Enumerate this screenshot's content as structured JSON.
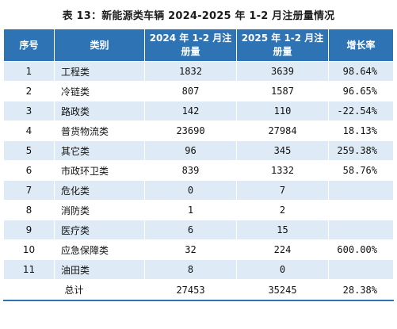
{
  "title": "表 13：新能源类车辆 2024-2025 年 1-2 月注册量情况",
  "headers": {
    "index": "序号",
    "category": "类别",
    "y2024": "2024 年 1-2 月注册量",
    "y2025": "2025 年 1-2 月注册量",
    "growth": "增长率"
  },
  "rows": [
    {
      "index": "1",
      "category": "工程类",
      "y2024": "1832",
      "y2025": "3639",
      "growth": "98.64%"
    },
    {
      "index": "2",
      "category": "冷链类",
      "y2024": "807",
      "y2025": "1587",
      "growth": "96.65%"
    },
    {
      "index": "3",
      "category": "路政类",
      "y2024": "142",
      "y2025": "110",
      "growth": "-22.54%"
    },
    {
      "index": "4",
      "category": "普货物流类",
      "y2024": "23690",
      "y2025": "27984",
      "growth": "18.13%"
    },
    {
      "index": "5",
      "category": "其它类",
      "y2024": "96",
      "y2025": "345",
      "growth": "259.38%"
    },
    {
      "index": "6",
      "category": "市政环卫类",
      "y2024": "839",
      "y2025": "1332",
      "growth": "58.76%"
    },
    {
      "index": "7",
      "category": "危化类",
      "y2024": "0",
      "y2025": "7",
      "growth": ""
    },
    {
      "index": "8",
      "category": "消防类",
      "y2024": "1",
      "y2025": "2",
      "growth": ""
    },
    {
      "index": "9",
      "category": "医疗类",
      "y2024": "6",
      "y2025": "15",
      "growth": ""
    },
    {
      "index": "10",
      "category": "应急保障类",
      "y2024": "32",
      "y2025": "224",
      "growth": "600.00%"
    },
    {
      "index": "11",
      "category": "油田类",
      "y2024": "8",
      "y2025": "0",
      "growth": ""
    }
  ],
  "total": {
    "label": "总计",
    "y2024": "27453",
    "y2025": "35245",
    "growth": "28.38%"
  }
}
